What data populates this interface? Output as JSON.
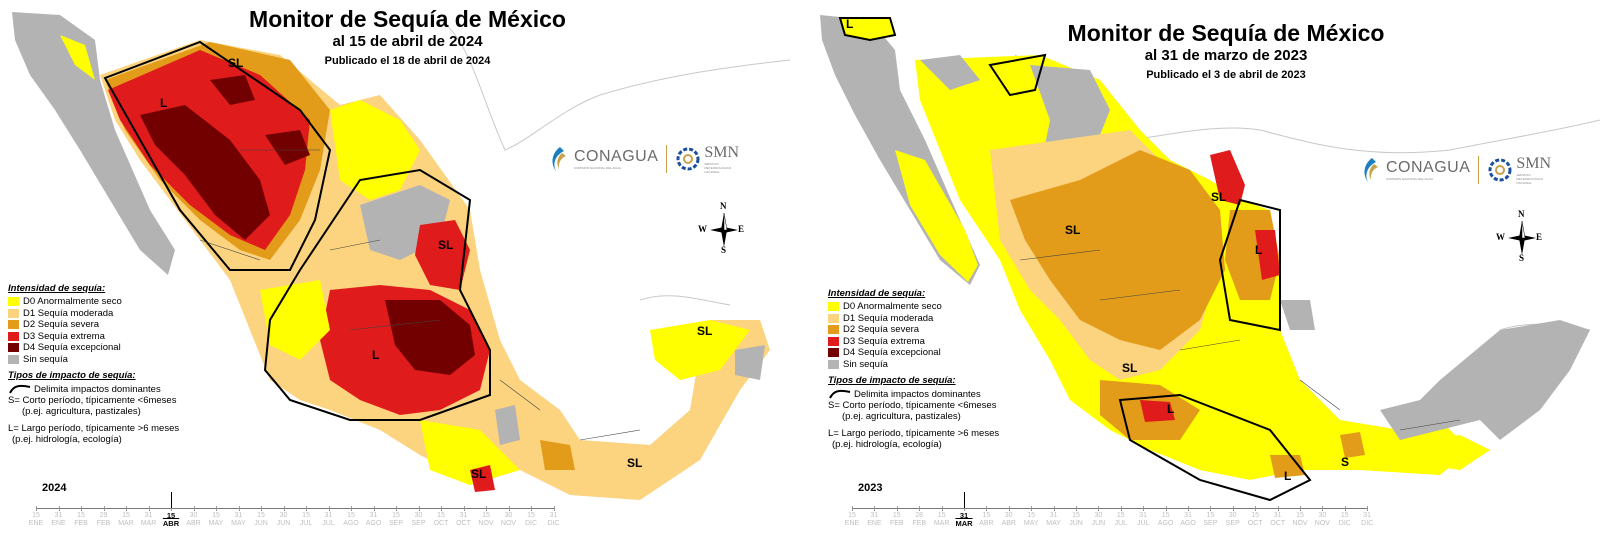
{
  "colors": {
    "d0": "#ffff00",
    "d1": "#fcd37f",
    "d2": "#e39b1a",
    "d3": "#e01b1b",
    "d4": "#730000",
    "none": "#b3b3b3",
    "land": "#d9d9d9"
  },
  "icons": [
    "conagua-logo-icon",
    "smn-logo-icon",
    "north-arrow-icon",
    "impact-line-icon"
  ],
  "panels": [
    {
      "title": "Monitor de Sequía de México",
      "date": "al 15 de abril de 2024",
      "published": "Publicado el 18 de abril de 2024",
      "conagua": "CONAGUA",
      "conagua_sub": "COMISIÓN NACIONAL DEL AGUA",
      "smn": "SMN",
      "smn_sub": "SERVICIO METEOROLÓGICO NACIONAL",
      "compass": {
        "n": "N",
        "e": "E",
        "s": "S",
        "w": "W"
      },
      "legend": {
        "heading": "Intensidad de sequía:",
        "items": [
          "D0 Anormalmente seco",
          "D1 Sequía moderada",
          "D2 Sequía severa",
          "D3 Sequía extrema",
          "D4 Sequía excepcional",
          "Sin sequía"
        ],
        "impact_heading": "Tipos de impacto de sequía:",
        "impact_line": "Delimita impactos dominantes",
        "short_1": "S= Corto período, típicamente <6meses",
        "short_2": "(p.ej. agricultura, pastizales)",
        "long_1": "L= Largo período, típicamente >6 meses",
        "long_2": "(p.ej. hidrología, ecología)"
      },
      "map_labels": [
        "SL",
        "L",
        "SL",
        "L",
        "SL",
        "SL",
        "SL"
      ],
      "timeline": {
        "year": "2024",
        "days": [
          "15",
          "31",
          "15",
          "29",
          "15",
          "31",
          "15",
          "30",
          "15",
          "31",
          "15",
          "30",
          "15",
          "31",
          "15",
          "31",
          "15",
          "30",
          "15",
          "31",
          "15",
          "30",
          "15",
          "31"
        ],
        "months": [
          "ENE",
          "ENE",
          "FEB",
          "FEB",
          "MAR",
          "MAR",
          "ABR",
          "ABR",
          "MAY",
          "MAY",
          "JUN",
          "JUN",
          "JUL",
          "JUL",
          "AGO",
          "AGO",
          "SEP",
          "SEP",
          "OCT",
          "OCT",
          "NOV",
          "NOV",
          "DIC",
          "DIC"
        ],
        "current_day": "15",
        "current_month": "ABR",
        "current_index": 6
      }
    },
    {
      "title": "Monitor de Sequía de México",
      "date": "al 31 de marzo de 2023",
      "published": "Publicado el 3 de abril de 2023",
      "conagua": "CONAGUA",
      "conagua_sub": "COMISIÓN NACIONAL DEL AGUA",
      "smn": "SMN",
      "smn_sub": "SERVICIO METEOROLÓGICO NACIONAL",
      "compass": {
        "n": "N",
        "e": "E",
        "s": "S",
        "w": "W"
      },
      "legend": {
        "heading": "Intensidad de sequía:",
        "items": [
          "D0 Anormalmente seco",
          "D1 Sequía moderada",
          "D2 Sequía severa",
          "D3 Sequía extrema",
          "D4 Sequía excepcional",
          "Sin sequía"
        ],
        "impact_heading": "Tipos de impacto de sequía:",
        "impact_line": "Delimita impactos dominantes",
        "short_1": "S= Corto período, típicamente <6meses",
        "short_2": "(p.ej. agricultura, pastizales)",
        "long_1": "L= Largo período, típicamente >6 meses",
        "long_2": "(p.ej. hidrología, ecología)"
      },
      "map_labels": [
        "L",
        "SL",
        "L",
        "SL",
        "SL",
        "L",
        "L",
        "S"
      ],
      "timeline": {
        "year": "2023",
        "days": [
          "15",
          "31",
          "15",
          "28",
          "15",
          "31",
          "15",
          "30",
          "15",
          "31",
          "15",
          "30",
          "15",
          "31",
          "15",
          "31",
          "15",
          "30",
          "15",
          "31",
          "15",
          "30",
          "15",
          "31"
        ],
        "months": [
          "ENE",
          "ENE",
          "FEB",
          "FEB",
          "MAR",
          "MAR",
          "ABR",
          "ABR",
          "MAY",
          "MAY",
          "JUN",
          "JUN",
          "JUL",
          "JUL",
          "AGO",
          "AGO",
          "SEP",
          "SEP",
          "OCT",
          "OCT",
          "NOV",
          "NOV",
          "DIC",
          "DIC"
        ],
        "current_day": "31",
        "current_month": "MAR",
        "current_index": 5
      }
    }
  ]
}
